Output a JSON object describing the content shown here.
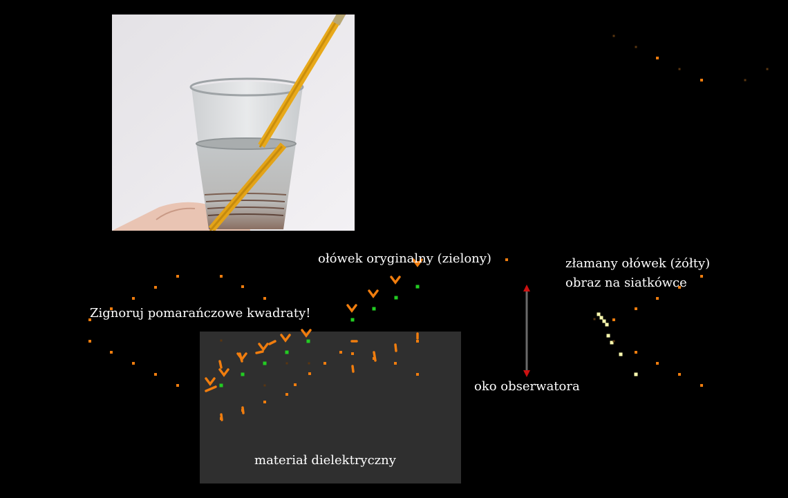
{
  "labels": {
    "ignore_note": "Zignoruj pomarańczowe kwadraty!",
    "original_pencil": "ołówek oryginalny (zielony)",
    "broken_pencil": "złamany ołówek (żółty)",
    "retina_image": "obraz na siatkówce",
    "observer_eye": "oko obserwatora",
    "dielectric": "materiał dielektryczny"
  },
  "colors": {
    "background": "#000000",
    "dielectric_fill": "#2f2f2f",
    "orange": "#f07d0e",
    "green": "#22cc22",
    "yellow": "#ffffb0",
    "eye_line": "#6a6a6a",
    "eye_arrow": "#cc1111"
  },
  "photo": {
    "subject": "pencil-in-glass-of-water"
  }
}
